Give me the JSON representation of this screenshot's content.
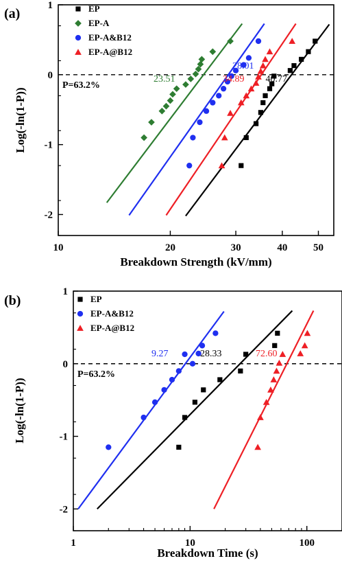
{
  "chart_data": [
    {
      "type": "scatter",
      "panel_label": "(a)",
      "xlabel": "Breakdown Strength (kV/mm)",
      "ylabel": "Log(-ln(1-P))",
      "xscale": "log",
      "xlim": [
        10,
        55
      ],
      "ylim": [
        -2.3,
        1
      ],
      "xticks": [
        10,
        20,
        30,
        40,
        50
      ],
      "xtick_labels": [
        "10",
        "20",
        "30",
        "40",
        "50"
      ],
      "yticks": [
        -2,
        -1,
        0,
        1
      ],
      "ytick_labels": [
        "-2",
        "-1",
        "0",
        "1"
      ],
      "reference_line": {
        "y": 0,
        "style": "dashed"
      },
      "note": "P=63.2%",
      "legend_position": "top-left",
      "series": [
        {
          "name": "EP",
          "marker": "square",
          "color": "#000000",
          "x": [
            31,
            32,
            34,
            35,
            35.5,
            36,
            37,
            37.5,
            38,
            42,
            43,
            45,
            47,
            49
          ],
          "y": [
            -1.3,
            -0.9,
            -0.7,
            -0.54,
            -0.4,
            -0.3,
            -0.2,
            -0.13,
            -0.02,
            0.06,
            0.13,
            0.22,
            0.33,
            0.48
          ],
          "fit": {
            "x": [
              22,
              53.5
            ],
            "y": [
              -2.02,
              0.72
            ]
          },
          "characteristic_label": "40.77"
        },
        {
          "name": "EP-A",
          "marker": "diamond",
          "color": "#2e7d32",
          "x": [
            17,
            17.8,
            19,
            19.5,
            20,
            20.3,
            20.8,
            22,
            22.7,
            23.4,
            23.8,
            24.1,
            24.3,
            26,
            29
          ],
          "y": [
            -0.9,
            -0.68,
            -0.52,
            -0.45,
            -0.37,
            -0.28,
            -0.2,
            -0.14,
            -0.06,
            0.01,
            0.08,
            0.15,
            0.22,
            0.33,
            0.48
          ],
          "fit": {
            "x": [
              13.5,
              31.2
            ],
            "y": [
              -1.83,
              0.73
            ]
          },
          "characteristic_label": "23.51"
        },
        {
          "name": "EP-A&B12",
          "marker": "circle",
          "color": "#1f2ff0",
          "x": [
            22.5,
            23,
            24,
            25,
            26,
            27,
            27.8,
            28.5,
            29.2,
            30,
            31.5,
            32.5,
            34.5
          ],
          "y": [
            -1.3,
            -0.9,
            -0.68,
            -0.52,
            -0.4,
            -0.3,
            -0.2,
            -0.1,
            -0.02,
            0.06,
            0.14,
            0.24,
            0.48
          ],
          "fit": {
            "x": [
              15.5,
              35.8
            ],
            "y": [
              -2.01,
              0.73
            ]
          },
          "characteristic_label": "28.01"
        },
        {
          "name": "EP-A@B12",
          "marker": "triangle",
          "color": "#ee1f25",
          "x": [
            27.5,
            28,
            29,
            31,
            32,
            33,
            34,
            34.5,
            35,
            35.5,
            36,
            37,
            42.5
          ],
          "y": [
            -1.3,
            -0.9,
            -0.55,
            -0.4,
            -0.3,
            -0.2,
            -0.12,
            -0.03,
            0.05,
            0.13,
            0.22,
            0.33,
            0.48
          ],
          "fit": {
            "x": [
              19.5,
              43.5
            ],
            "y": [
              -2.01,
              0.73
            ]
          },
          "characteristic_label": "34.89"
        }
      ]
    },
    {
      "type": "scatter",
      "panel_label": "(b)",
      "xlabel": "Breakdown Time (s)",
      "ylabel": "Log(-ln(1-P))",
      "xscale": "log",
      "xlim": [
        1,
        200
      ],
      "ylim": [
        -2.3,
        1
      ],
      "xticks": [
        1,
        10,
        100
      ],
      "xtick_labels": [
        "1",
        "10",
        "100"
      ],
      "yticks": [
        -2,
        -1,
        0,
        1
      ],
      "ytick_labels": [
        "-2",
        "-1",
        "0",
        "1"
      ],
      "reference_line": {
        "y": 0,
        "style": "dashed"
      },
      "note": "P=63.2%",
      "legend_position": "top-left",
      "series": [
        {
          "name": "EP",
          "marker": "square",
          "color": "#000000",
          "x": [
            8,
            9,
            11,
            13,
            18,
            27,
            30,
            53,
            56
          ],
          "y": [
            -1.15,
            -0.74,
            -0.53,
            -0.36,
            -0.22,
            -0.1,
            0.13,
            0.25,
            0.42
          ],
          "fit": {
            "x": [
              1.6,
              75
            ],
            "y": [
              -2.0,
              0.73
            ]
          },
          "characteristic_label": "28.33"
        },
        {
          "name": "EP-A&B12",
          "marker": "circle",
          "color": "#1f2ff0",
          "x": [
            2,
            4,
            5,
            6,
            7,
            8,
            9,
            10.5,
            11.8,
            12.7,
            16.5
          ],
          "y": [
            -1.15,
            -0.74,
            -0.53,
            -0.36,
            -0.22,
            -0.1,
            0.13,
            0.0,
            0.14,
            0.25,
            0.42
          ],
          "fit": {
            "x": [
              1.1,
              19.5
            ],
            "y": [
              -2.0,
              0.72
            ]
          },
          "characteristic_label": "9.27"
        },
        {
          "name": "EP-A@B12",
          "marker": "triangle",
          "color": "#ee1f25",
          "x": [
            38,
            40,
            45,
            49,
            52,
            55,
            58,
            62,
            88,
            96,
            101
          ],
          "y": [
            -1.15,
            -0.74,
            -0.53,
            -0.36,
            -0.22,
            -0.1,
            0.01,
            0.13,
            0.14,
            0.25,
            0.42
          ],
          "fit": {
            "x": [
              16,
              114
            ],
            "y": [
              -2.0,
              0.73
            ]
          },
          "characteristic_label": "72.60"
        }
      ]
    }
  ]
}
